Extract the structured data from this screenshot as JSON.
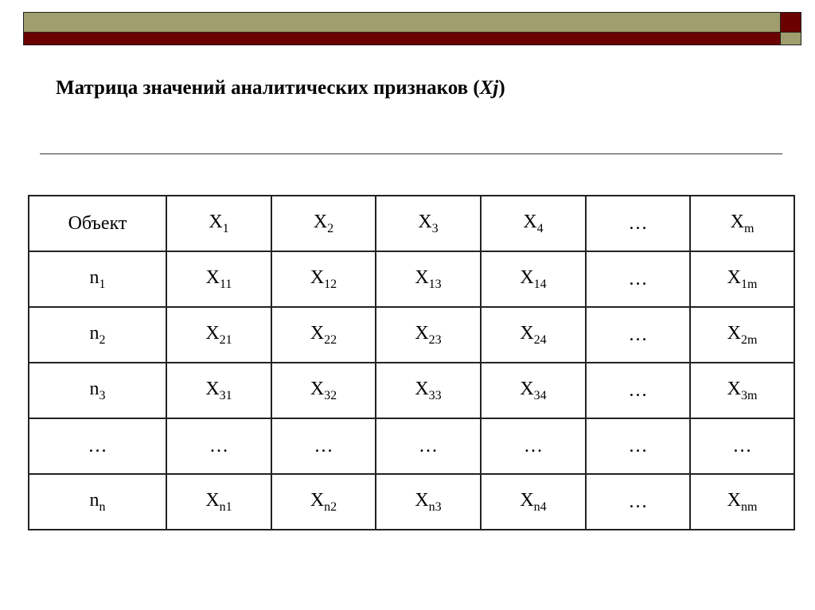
{
  "colors": {
    "olive": "#a09d6e",
    "dark_red": "#6b0000"
  },
  "title": {
    "text": "Матрица значений аналитических признаков (",
    "var": "Xj",
    "close": ")"
  },
  "table": {
    "header": [
      {
        "b": "Объект",
        "s": ""
      },
      {
        "b": "X",
        "s": "1"
      },
      {
        "b": "X",
        "s": "2"
      },
      {
        "b": "X",
        "s": "3"
      },
      {
        "b": "X",
        "s": "4"
      },
      {
        "b": "…",
        "s": ""
      },
      {
        "b": "X",
        "s": "m"
      }
    ],
    "rows": [
      [
        {
          "b": "n",
          "s": "1"
        },
        {
          "b": "X",
          "s": "11"
        },
        {
          "b": "X",
          "s": "12"
        },
        {
          "b": "X",
          "s": "13"
        },
        {
          "b": "X",
          "s": "14"
        },
        {
          "b": "…",
          "s": ""
        },
        {
          "b": "X",
          "s": "1m"
        }
      ],
      [
        {
          "b": "n",
          "s": "2"
        },
        {
          "b": "X",
          "s": "21"
        },
        {
          "b": "X",
          "s": "22"
        },
        {
          "b": "X",
          "s": "23"
        },
        {
          "b": "X",
          "s": "24"
        },
        {
          "b": "…",
          "s": ""
        },
        {
          "b": "X",
          "s": "2m"
        }
      ],
      [
        {
          "b": "n",
          "s": "3"
        },
        {
          "b": "X",
          "s": "31"
        },
        {
          "b": "X",
          "s": "32"
        },
        {
          "b": "X",
          "s": "33"
        },
        {
          "b": "X",
          "s": "34"
        },
        {
          "b": "…",
          "s": ""
        },
        {
          "b": "X",
          "s": "3m"
        }
      ],
      [
        {
          "b": "…",
          "s": ""
        },
        {
          "b": "…",
          "s": ""
        },
        {
          "b": "…",
          "s": ""
        },
        {
          "b": "…",
          "s": ""
        },
        {
          "b": "…",
          "s": ""
        },
        {
          "b": "…",
          "s": ""
        },
        {
          "b": "…",
          "s": ""
        }
      ],
      [
        {
          "b": "n",
          "s": "n"
        },
        {
          "b": "X",
          "s": "n1"
        },
        {
          "b": "X",
          "s": "n2"
        },
        {
          "b": "X",
          "s": "n3"
        },
        {
          "b": "X",
          "s": "n4"
        },
        {
          "b": "…",
          "s": ""
        },
        {
          "b": "X",
          "s": "nm"
        }
      ]
    ]
  }
}
